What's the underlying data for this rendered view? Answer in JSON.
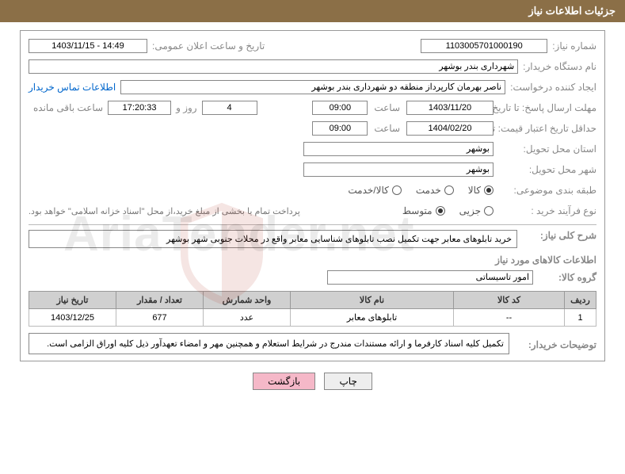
{
  "title": "جزئیات اطلاعات نیاز",
  "labels": {
    "need_no": "شماره نیاز:",
    "announce": "تاریخ و ساعت اعلان عمومی:",
    "buyer_org": "نام دستگاه خریدار:",
    "requester": "ایجاد کننده درخواست:",
    "contact_link": "اطلاعات تماس خریدار",
    "reply_deadline": "مهلت ارسال پاسخ: تا تاریخ:",
    "hour": "ساعت",
    "days_and": "روز و",
    "hours_left": "ساعت باقی مانده",
    "price_validity": "حداقل تاریخ اعتبار قیمت: تا تاریخ:",
    "delivery_province": "استان محل تحویل:",
    "delivery_city": "شهر محل تحویل:",
    "category": "طبقه بندی موضوعی:",
    "purchase_process": "نوع فرآیند خرید :",
    "payment_note": "پرداخت تمام یا بخشی از مبلغ خرید،از محل \"اسناد خزانه اسلامی\" خواهد بود.",
    "need_desc": "شرح کلی نیاز:",
    "goods_info": "اطلاعات کالاهای مورد نیاز",
    "goods_group": "گروه کالا:",
    "buyer_notes": "توضیحات خریدار:"
  },
  "values": {
    "need_no": "1103005701000190",
    "announce": "1403/11/15 - 14:49",
    "buyer_org": "شهرداری بندر بوشهر",
    "requester": "ناصر بهرمان کارپرداز منطقه دو شهرداری بندر بوشهر",
    "reply_date": "1403/11/20",
    "reply_time": "09:00",
    "days": "4",
    "countdown": "17:20:33",
    "validity_date": "1404/02/20",
    "validity_time": "09:00",
    "province": "بوشهر",
    "city": "بوشهر",
    "need_desc": "خرید تابلوهای معابر جهت تکمیل نصب تابلوهای شناسایی معابر واقع در محلات جنوبی شهر بوشهر",
    "goods_group": "امور تاسیساتی",
    "buyer_notes": "تکمیل کلیه اسناد کارفرما و ارائه مستندات مندرج در شرایط استعلام و همچنین مهر و امضاء تعهدآور ذیل کلیه اوراق الزامی است."
  },
  "radios": {
    "category": [
      {
        "label": "کالا",
        "checked": true
      },
      {
        "label": "خدمت",
        "checked": false
      },
      {
        "label": "کالا/خدمت",
        "checked": false
      }
    ],
    "process": [
      {
        "label": "جزیی",
        "checked": false
      },
      {
        "label": "متوسط",
        "checked": true
      }
    ]
  },
  "table": {
    "headers": [
      "ردیف",
      "کد کالا",
      "نام کالا",
      "واحد شمارش",
      "تعداد / مقدار",
      "تاریخ نیاز"
    ],
    "row": [
      "1",
      "--",
      "تابلوهای معابر",
      "عدد",
      "677",
      "1403/12/25"
    ],
    "col_widths": [
      "40px",
      "140px",
      "auto",
      "110px",
      "110px",
      "110px"
    ]
  },
  "buttons": {
    "print": "چاپ",
    "back": "بازگشت"
  },
  "watermark": "AriaTender.net"
}
